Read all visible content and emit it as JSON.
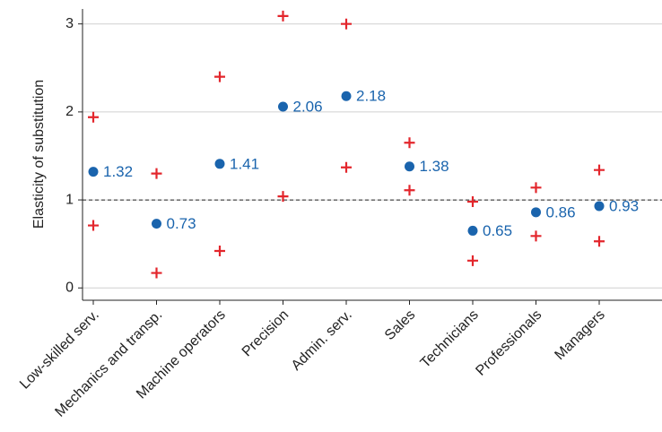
{
  "chart_data": {
    "type": "estimates",
    "y_label": "Elasticity of substitution",
    "categories": [
      "Low-skilled serv.",
      "Mechanics and transp.",
      "Machine operators",
      "Precision",
      "Admin. serv.",
      "Sales",
      "Technicians",
      "Professionals",
      "Managers"
    ],
    "values": [
      1.32,
      0.73,
      1.41,
      2.06,
      2.18,
      1.38,
      0.65,
      0.86,
      0.93
    ],
    "upper": [
      1.94,
      1.3,
      2.4,
      3.09,
      3.0,
      1.65,
      0.98,
      1.14,
      1.34
    ],
    "lower": [
      0.71,
      0.17,
      0.42,
      1.04,
      1.37,
      1.11,
      0.31,
      0.59,
      0.53
    ],
    "color": "#1a64ad",
    "bound_color": "#e3262c",
    "reference_line": 1,
    "ylim": [
      -0.14,
      3.17
    ],
    "yticks": [
      0,
      1,
      2,
      3
    ],
    "grid": true
  }
}
